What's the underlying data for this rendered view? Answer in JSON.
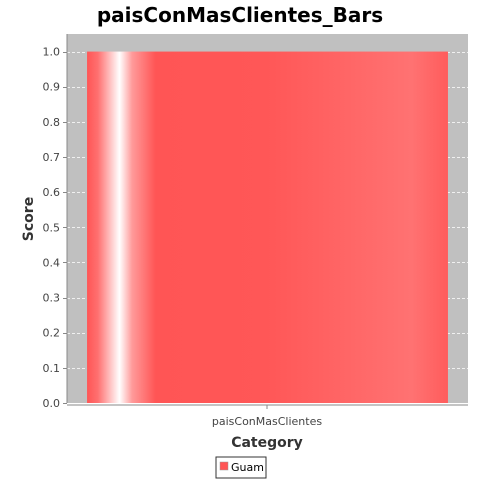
{
  "chart_data": {
    "type": "bar",
    "title": "paisConMasClientes_Bars",
    "xlabel": "Category",
    "ylabel": "Score",
    "categories": [
      "paisConMasClientes"
    ],
    "series": [
      {
        "name": "Guam",
        "values": [
          1.0
        ],
        "color": "#ff5555"
      }
    ],
    "ylim": [
      0.0,
      1.05
    ],
    "yticks": [
      "0.0",
      "0.1",
      "0.2",
      "0.3",
      "0.4",
      "0.5",
      "0.6",
      "0.7",
      "0.8",
      "0.9",
      "1.0"
    ],
    "grid": true,
    "legend_position": "bottom"
  },
  "colors": {
    "plot_background": "#c0c0c0",
    "gridline": "#ffffff",
    "bar_base": "#ff5555",
    "bar_highlight": "#ffffff"
  }
}
